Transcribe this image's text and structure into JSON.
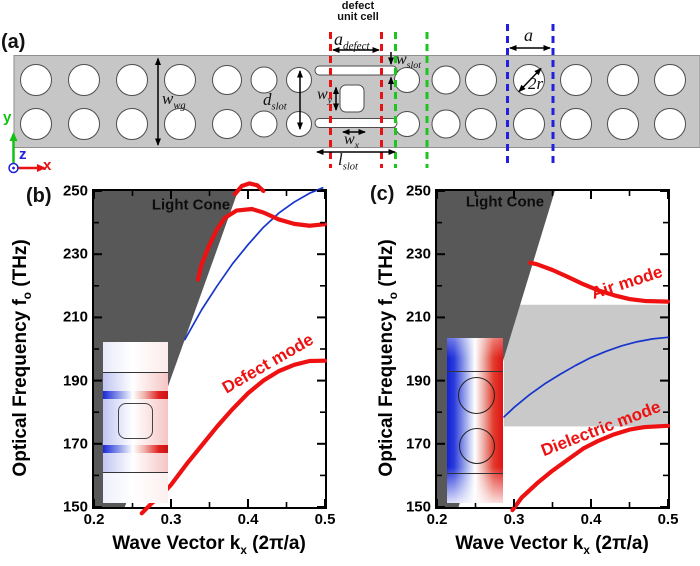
{
  "colors": {
    "waveguide_gray": "#c6c6c6",
    "light_cone_fill": "#585858",
    "band_gap_fill": "#c9c9c9",
    "mode_red": "#ee1111",
    "mode_blue": "#1535cc",
    "dash_red": "#e81010",
    "dash_green": "#1ec51e",
    "dash_blue": "#2020dd",
    "field_blue": "#1322d6",
    "field_red": "#e01212"
  },
  "panels": {
    "a": "(a)",
    "b": "(b)",
    "c": "(c)"
  },
  "panel_a": {
    "note_line1": "defect",
    "note_line2": "unit cell",
    "dims": {
      "a_defect": {
        "base": "a",
        "sub": "defect"
      },
      "w_slot": {
        "base": "w",
        "sub": "slot"
      },
      "w_wg": {
        "base": "w",
        "sub": "wg"
      },
      "d_slot": {
        "base": "d",
        "sub": "slot"
      },
      "w_y": {
        "base": "w",
        "sub": "y"
      },
      "w_x": {
        "base": "w",
        "sub": "x"
      },
      "l_slot": {
        "base": "l",
        "sub": "slot"
      },
      "a": {
        "base": "a",
        "sub": ""
      },
      "two_r": {
        "base": "2r",
        "sub": ""
      }
    },
    "triad": {
      "x": "x",
      "y": "y",
      "z": "z"
    }
  },
  "axis": {
    "x_title": {
      "pre": "Wave Vector k",
      "sub": "x",
      "post": " (2π/a)"
    },
    "y_title": {
      "pre": "Optical Frequency f",
      "sub": "o",
      "post": " (THz)"
    },
    "x_tick_labels": [
      "0.2",
      "0.3",
      "0.4",
      "0.5"
    ],
    "y_tick_labels": [
      "150",
      "170",
      "190",
      "210",
      "230",
      "250"
    ]
  },
  "chart_data": [
    {
      "type": "line",
      "panel": "(b)",
      "xlabel": "Wave Vector k_x (2π/a)",
      "ylabel": "Optical Frequency f_o (THz)",
      "xlim": [
        0.2,
        0.5
      ],
      "ylim": [
        150,
        250
      ],
      "x_ticks_major": [
        0.2,
        0.3,
        0.4,
        0.5
      ],
      "x_ticks_minor": [
        0.25,
        0.35,
        0.45
      ],
      "y_ticks_major": [
        150,
        170,
        190,
        210,
        230,
        250
      ],
      "y_ticks_minor": [
        160,
        180,
        200,
        220,
        240
      ],
      "light_cone": {
        "label": "Light Cone",
        "x_at_ymin": 0.24,
        "x_at_ymax": 0.387,
        "fill": "#585858"
      },
      "series": [
        {
          "name": "defect_mode",
          "label": "Defect mode",
          "color": "#ee1111",
          "width": 4.2,
          "points": [
            [
              0.262,
              148
            ],
            [
              0.275,
              151.2
            ],
            [
              0.288,
              153.8
            ],
            [
              0.3,
              157
            ],
            [
              0.32,
              163.5
            ],
            [
              0.34,
              169.5
            ],
            [
              0.36,
              175.5
            ],
            [
              0.38,
              181
            ],
            [
              0.4,
              186
            ],
            [
              0.42,
              190
            ],
            [
              0.44,
              193
            ],
            [
              0.46,
              195
            ],
            [
              0.48,
              196.2
            ],
            [
              0.5,
              196.3
            ]
          ]
        },
        {
          "name": "blue_mode",
          "label": "",
          "color": "#1535cc",
          "width": 1.7,
          "points": [
            [
              0.318,
              203
            ],
            [
              0.34,
              212.5
            ],
            [
              0.36,
              220
            ],
            [
              0.38,
              227
            ],
            [
              0.4,
              233
            ],
            [
              0.42,
              238.5
            ],
            [
              0.44,
              243
            ],
            [
              0.46,
              246.5
            ],
            [
              0.48,
              249.3
            ],
            [
              0.497,
              251
            ]
          ]
        },
        {
          "name": "upper_red_mode",
          "label": "",
          "color": "#ee1111",
          "width": 4.2,
          "points": [
            [
              0.335,
              222
            ],
            [
              0.34,
              227
            ],
            [
              0.35,
              233
            ],
            [
              0.36,
              238
            ],
            [
              0.37,
              241.5
            ],
            [
              0.385,
              243.8
            ],
            [
              0.405,
              244.3
            ],
            [
              0.42,
              243.2
            ],
            [
              0.44,
              241
            ],
            [
              0.46,
              239.6
            ],
            [
              0.48,
              239
            ],
            [
              0.5,
              239.5
            ]
          ]
        },
        {
          "name": "top_clipped_band",
          "label": "",
          "color": "#ee1111",
          "width": 4.2,
          "points": [
            [
              0.383,
              249
            ],
            [
              0.392,
              251.6
            ],
            [
              0.402,
              252.4
            ],
            [
              0.412,
              251.8
            ],
            [
              0.42,
              250
            ]
          ]
        }
      ]
    },
    {
      "type": "line",
      "panel": "(c)",
      "xlabel": "Wave Vector k_x (2π/a)",
      "ylabel": "Optical Frequency f_o (THz)",
      "xlim": [
        0.2,
        0.5
      ],
      "ylim": [
        150,
        250
      ],
      "x_ticks_major": [
        0.2,
        0.3,
        0.4,
        0.5
      ],
      "x_ticks_minor": [
        0.25,
        0.35,
        0.45
      ],
      "y_ticks_major": [
        150,
        170,
        190,
        210,
        230,
        250
      ],
      "y_ticks_minor": [
        160,
        180,
        200,
        220,
        240
      ],
      "light_cone": {
        "label": "Light Cone",
        "x_at_ymin": 0.228,
        "x_at_ymax": 0.353,
        "fill": "#585858"
      },
      "band_gap_region": {
        "x_range": [
          0.287,
          0.5
        ],
        "f_range": [
          175.5,
          214
        ],
        "fill": "#c9c9c9"
      },
      "series": [
        {
          "name": "air_mode",
          "label": "Air mode",
          "color": "#ee1111",
          "width": 4.2,
          "points": [
            [
              0.321,
              227.3
            ],
            [
              0.33,
              226.8
            ],
            [
              0.35,
              225
            ],
            [
              0.37,
              222.8
            ],
            [
              0.39,
              220.5
            ],
            [
              0.41,
              218.5
            ],
            [
              0.43,
              217
            ],
            [
              0.45,
              215.8
            ],
            [
              0.47,
              215.2
            ],
            [
              0.5,
              215
            ]
          ]
        },
        {
          "name": "dielectric_mode",
          "label": "Dielectric mode",
          "color": "#ee1111",
          "width": 4.2,
          "points": [
            [
              0.298,
              149
            ],
            [
              0.31,
              153
            ],
            [
              0.33,
              157.5
            ],
            [
              0.35,
              161.5
            ],
            [
              0.37,
              165
            ],
            [
              0.39,
              168.5
            ],
            [
              0.41,
              171
            ],
            [
              0.43,
              173
            ],
            [
              0.45,
              174.5
            ],
            [
              0.47,
              175.3
            ],
            [
              0.5,
              175.7
            ]
          ]
        },
        {
          "name": "blue_mode",
          "label": "",
          "color": "#1535cc",
          "width": 1.7,
          "points": [
            [
              0.287,
              178.5
            ],
            [
              0.3,
              181.5
            ],
            [
              0.32,
              185.5
            ],
            [
              0.34,
              189
            ],
            [
              0.36,
              192
            ],
            [
              0.38,
              194.8
            ],
            [
              0.4,
              197.3
            ],
            [
              0.42,
              199.3
            ],
            [
              0.44,
              201
            ],
            [
              0.46,
              202.3
            ],
            [
              0.48,
              203.2
            ],
            [
              0.5,
              203.7
            ]
          ]
        }
      ]
    }
  ]
}
